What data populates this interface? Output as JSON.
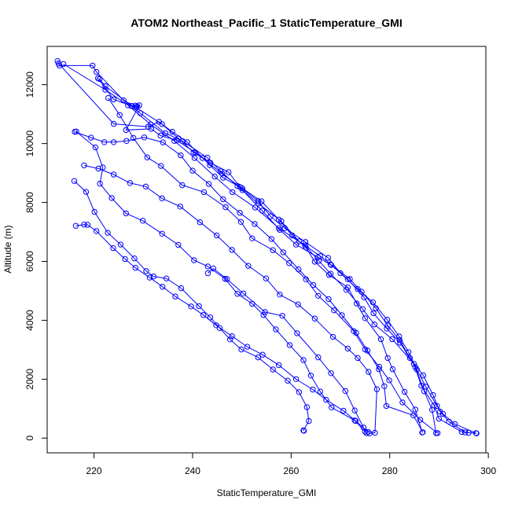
{
  "chart_data": {
    "type": "scatter",
    "title": "ATOM2 Northeast_Pacific_1 StaticTemperature_GMI",
    "xlabel": "StaticTemperature_GMI",
    "ylabel": "Altitude (m)",
    "xlim": [
      210.5,
      299.5
    ],
    "ylim": [
      -500,
      13300
    ],
    "xticks": [
      220,
      240,
      260,
      280,
      300
    ],
    "yticks": [
      0,
      2000,
      4000,
      6000,
      8000,
      10000,
      12000
    ],
    "color": "#0000ff",
    "marker": "open-circle",
    "connect_points": true,
    "series": [
      {
        "values": [
          [
            212.6,
            12800
          ],
          [
            213.0,
            12650
          ],
          [
            219.7,
            12650
          ],
          [
            220.5,
            12430
          ],
          [
            226.0,
            11470
          ],
          [
            229.4,
            11030
          ],
          [
            234.5,
            10350
          ],
          [
            238.0,
            10080
          ],
          [
            243.0,
            9520
          ],
          [
            245.7,
            9060
          ],
          [
            249.1,
            8560
          ],
          [
            253.3,
            7970
          ],
          [
            258.0,
            7360
          ],
          [
            261.6,
            6680
          ],
          [
            265.9,
            6180
          ],
          [
            268.0,
            5900
          ],
          [
            271.9,
            5400
          ],
          [
            274.3,
            4970
          ],
          [
            277.2,
            4410
          ],
          [
            279.6,
            3820
          ],
          [
            282.0,
            3330
          ],
          [
            284.1,
            2720
          ],
          [
            286.8,
            2130
          ],
          [
            288.8,
            1460
          ],
          [
            290.2,
            900
          ],
          [
            292.0,
            560
          ],
          [
            295.3,
            190
          ],
          [
            296.0,
            180
          ]
        ]
      },
      {
        "values": [
          [
            212.8,
            12720
          ],
          [
            224.0,
            10670
          ],
          [
            231.0,
            10570
          ],
          [
            233.2,
            10740
          ],
          [
            237.1,
            10180
          ],
          [
            240.2,
            9700
          ],
          [
            242.0,
            9510
          ],
          [
            246.0,
            8980
          ],
          [
            249.6,
            8530
          ],
          [
            253.3,
            8050
          ],
          [
            255.8,
            7530
          ],
          [
            258.7,
            7130
          ],
          [
            262.9,
            6660
          ],
          [
            267.5,
            6120
          ],
          [
            270.0,
            5600
          ],
          [
            273.5,
            5060
          ],
          [
            276.6,
            4610
          ],
          [
            279.5,
            4020
          ],
          [
            281.9,
            3450
          ],
          [
            283.8,
            2920
          ],
          [
            285.5,
            2330
          ],
          [
            287.3,
            1750
          ],
          [
            289.6,
            1090
          ],
          [
            290.8,
            820
          ],
          [
            293.2,
            480
          ],
          [
            297.5,
            170
          ]
        ]
      },
      {
        "values": [
          [
            213.8,
            12700
          ],
          [
            222.3,
            11830
          ],
          [
            226.9,
            11300
          ],
          [
            231.5,
            10650
          ],
          [
            236.3,
            10090
          ],
          [
            240.4,
            9510
          ],
          [
            244.5,
            8880
          ],
          [
            248.1,
            8350
          ],
          [
            252.7,
            7830
          ],
          [
            257.5,
            7130
          ],
          [
            262.8,
            6540
          ],
          [
            265.6,
            6020
          ],
          [
            268.0,
            5580
          ],
          [
            271.2,
            5030
          ],
          [
            274.5,
            4380
          ],
          [
            276.9,
            3860
          ],
          [
            280.5,
            3360
          ],
          [
            284.9,
            2520
          ],
          [
            286.4,
            1780
          ],
          [
            289.0,
            1110
          ],
          [
            290.0,
            660
          ],
          [
            294.6,
            210
          ],
          [
            297.6,
            160
          ]
        ]
      },
      {
        "values": [
          [
            221.1,
            12190
          ],
          [
            222.3,
            11950
          ],
          [
            227.8,
            11270
          ],
          [
            228.8,
            11260
          ],
          [
            229.2,
            11300
          ],
          [
            226.5,
            10460
          ],
          [
            231.6,
            10500
          ],
          [
            233.5,
            10270
          ],
          [
            236.8,
            10110
          ],
          [
            240.6,
            9690
          ],
          [
            243.6,
            9350
          ],
          [
            247.3,
            9030
          ],
          [
            250.1,
            8420
          ],
          [
            254.1,
            7720
          ],
          [
            257.7,
            7070
          ],
          [
            261.0,
            6570
          ],
          [
            265.4,
            6140
          ],
          [
            268.1,
            5880
          ],
          [
            271.5,
            5390
          ],
          [
            274.8,
            4780
          ],
          [
            276.7,
            4240
          ],
          [
            279.4,
            3720
          ],
          [
            282.1,
            3240
          ],
          [
            285.2,
            2410
          ],
          [
            287.0,
            1590
          ],
          [
            288.6,
            960
          ],
          [
            289.4,
            170
          ]
        ]
      },
      {
        "values": [
          [
            222.9,
            11550
          ],
          [
            225.2,
            10970
          ],
          [
            228.0,
            10190
          ],
          [
            230.8,
            9530
          ],
          [
            233.6,
            9240
          ],
          [
            237.9,
            8590
          ],
          [
            242.3,
            8350
          ],
          [
            246.7,
            7840
          ],
          [
            249.8,
            7340
          ],
          [
            252.1,
            6780
          ],
          [
            256.3,
            6380
          ],
          [
            259.6,
            5940
          ],
          [
            263.0,
            5390
          ],
          [
            265.5,
            4830
          ],
          [
            268.7,
            4340
          ],
          [
            272.7,
            3630
          ],
          [
            275.0,
            3010
          ],
          [
            277.9,
            2420
          ],
          [
            279.9,
            1960
          ],
          [
            282.6,
            1210
          ],
          [
            286.2,
            620
          ],
          [
            289.7,
            170
          ]
        ]
      },
      {
        "values": [
          [
            220.8,
            12220
          ],
          [
            224.0,
            11500
          ],
          [
            227.6,
            11280
          ],
          [
            228.4,
            11290
          ],
          [
            228.6,
            11220
          ],
          [
            233.8,
            10660
          ],
          [
            235.9,
            10400
          ],
          [
            238.9,
            10050
          ],
          [
            243.5,
            9270
          ],
          [
            246.2,
            8840
          ],
          [
            250.1,
            8480
          ],
          [
            254.0,
            8040
          ],
          [
            257.5,
            7420
          ],
          [
            260.2,
            6880
          ],
          [
            263.0,
            6470
          ],
          [
            264.8,
            5990
          ],
          [
            267.7,
            5540
          ],
          [
            271.5,
            5120
          ],
          [
            273.3,
            4570
          ],
          [
            275.0,
            4070
          ],
          [
            278.2,
            3360
          ],
          [
            279.6,
            2720
          ],
          [
            280.6,
            2340
          ],
          [
            283.0,
            1570
          ],
          [
            285.2,
            970
          ],
          [
            286.6,
            190
          ]
        ]
      },
      {
        "values": [
          [
            216.1,
            10400
          ],
          [
            219.4,
            10200
          ],
          [
            222.1,
            10050
          ],
          [
            224.0,
            10050
          ],
          [
            226.6,
            10090
          ],
          [
            230.2,
            10210
          ],
          [
            234.0,
            10040
          ],
          [
            237.6,
            9600
          ],
          [
            240.0,
            9080
          ],
          [
            243.3,
            8630
          ],
          [
            246.2,
            8110
          ],
          [
            249.6,
            7650
          ],
          [
            252.6,
            7270
          ],
          [
            256.0,
            6760
          ],
          [
            258.4,
            6310
          ],
          [
            261.5,
            5730
          ],
          [
            264.5,
            5200
          ],
          [
            267.6,
            4720
          ],
          [
            270.3,
            4170
          ],
          [
            273.2,
            3570
          ],
          [
            275.5,
            2970
          ],
          [
            277.8,
            2340
          ],
          [
            278.9,
            1760
          ],
          [
            279.3,
            1090
          ],
          [
            284.8,
            770
          ],
          [
            286.7,
            200
          ]
        ]
      },
      {
        "values": [
          [
            216.4,
            10410
          ],
          [
            220.3,
            9870
          ],
          [
            221.8,
            9190
          ],
          [
            221.2,
            8640
          ],
          [
            223.6,
            8150
          ],
          [
            226.5,
            7630
          ],
          [
            229.9,
            7380
          ],
          [
            233.8,
            6940
          ],
          [
            237.1,
            6560
          ],
          [
            240.3,
            6040
          ],
          [
            243.1,
            5830
          ],
          [
            246.6,
            5410
          ],
          [
            249.1,
            4900
          ],
          [
            252.1,
            4560
          ],
          [
            254.4,
            4180
          ],
          [
            256.9,
            3690
          ],
          [
            259.7,
            3160
          ],
          [
            262.5,
            2650
          ],
          [
            264.0,
            2120
          ],
          [
            265.9,
            1580
          ],
          [
            268.2,
            1040
          ],
          [
            272.9,
            600
          ],
          [
            275.0,
            220
          ]
        ]
      },
      {
        "values": [
          [
            216.0,
            8730
          ],
          [
            218.4,
            8360
          ],
          [
            220.1,
            7680
          ],
          [
            222.8,
            6970
          ],
          [
            225.4,
            6570
          ],
          [
            228.2,
            6100
          ],
          [
            230.6,
            5670
          ],
          [
            232.1,
            5490
          ],
          [
            234.7,
            5420
          ],
          [
            237.7,
            5090
          ],
          [
            241.3,
            4480
          ],
          [
            243.6,
            4100
          ],
          [
            245.5,
            3740
          ],
          [
            247.6,
            3350
          ],
          [
            249.9,
            3010
          ],
          [
            253.3,
            2740
          ],
          [
            256.3,
            2330
          ],
          [
            259.3,
            1950
          ],
          [
            261.6,
            1560
          ],
          [
            263.2,
            1050
          ],
          [
            263.6,
            580
          ],
          [
            262.5,
            260
          ],
          [
            262.6,
            250
          ]
        ]
      },
      {
        "values": [
          [
            216.3,
            7210
          ],
          [
            218.0,
            7250
          ],
          [
            218.7,
            7240
          ],
          [
            220.5,
            7030
          ],
          [
            223.9,
            6450
          ],
          [
            226.3,
            6080
          ],
          [
            228.4,
            5780
          ],
          [
            231.3,
            5450
          ],
          [
            233.9,
            5140
          ],
          [
            236.5,
            4810
          ],
          [
            239.7,
            4470
          ],
          [
            242.2,
            4180
          ],
          [
            244.8,
            3830
          ],
          [
            248.0,
            3460
          ],
          [
            251.1,
            3100
          ],
          [
            254.2,
            2830
          ],
          [
            257.5,
            2480
          ],
          [
            261.0,
            2000
          ],
          [
            264.4,
            1650
          ],
          [
            267.1,
            1300
          ],
          [
            270.6,
            930
          ],
          [
            273.1,
            580
          ],
          [
            275.6,
            210
          ]
        ]
      },
      {
        "values": [
          [
            218.0,
            9260
          ],
          [
            220.9,
            9150
          ],
          [
            224.0,
            8950
          ],
          [
            227.3,
            8660
          ],
          [
            230.5,
            8540
          ],
          [
            233.8,
            8140
          ],
          [
            237.5,
            7860
          ],
          [
            241.5,
            7330
          ],
          [
            244.9,
            6880
          ],
          [
            248.0,
            6390
          ],
          [
            251.3,
            5850
          ],
          [
            254.9,
            5420
          ],
          [
            257.7,
            4870
          ],
          [
            261.4,
            4540
          ],
          [
            264.8,
            4060
          ],
          [
            268.5,
            3440
          ],
          [
            271.5,
            3040
          ],
          [
            273.5,
            2720
          ],
          [
            275.7,
            2250
          ],
          [
            277.4,
            1660
          ],
          [
            277.0,
            180
          ],
          [
            275.9,
            160
          ]
        ]
      },
      {
        "values": [
          [
            243.1,
            5600
          ],
          [
            244.2,
            5760
          ],
          [
            247.0,
            5400
          ],
          [
            250.3,
            4910
          ],
          [
            254.7,
            4280
          ],
          [
            258.2,
            4150
          ],
          [
            261.2,
            3560
          ],
          [
            265.5,
            2740
          ],
          [
            268.1,
            2200
          ],
          [
            271.0,
            1600
          ],
          [
            272.9,
            940
          ],
          [
            274.7,
            360
          ],
          [
            275.3,
            170
          ]
        ]
      }
    ]
  }
}
